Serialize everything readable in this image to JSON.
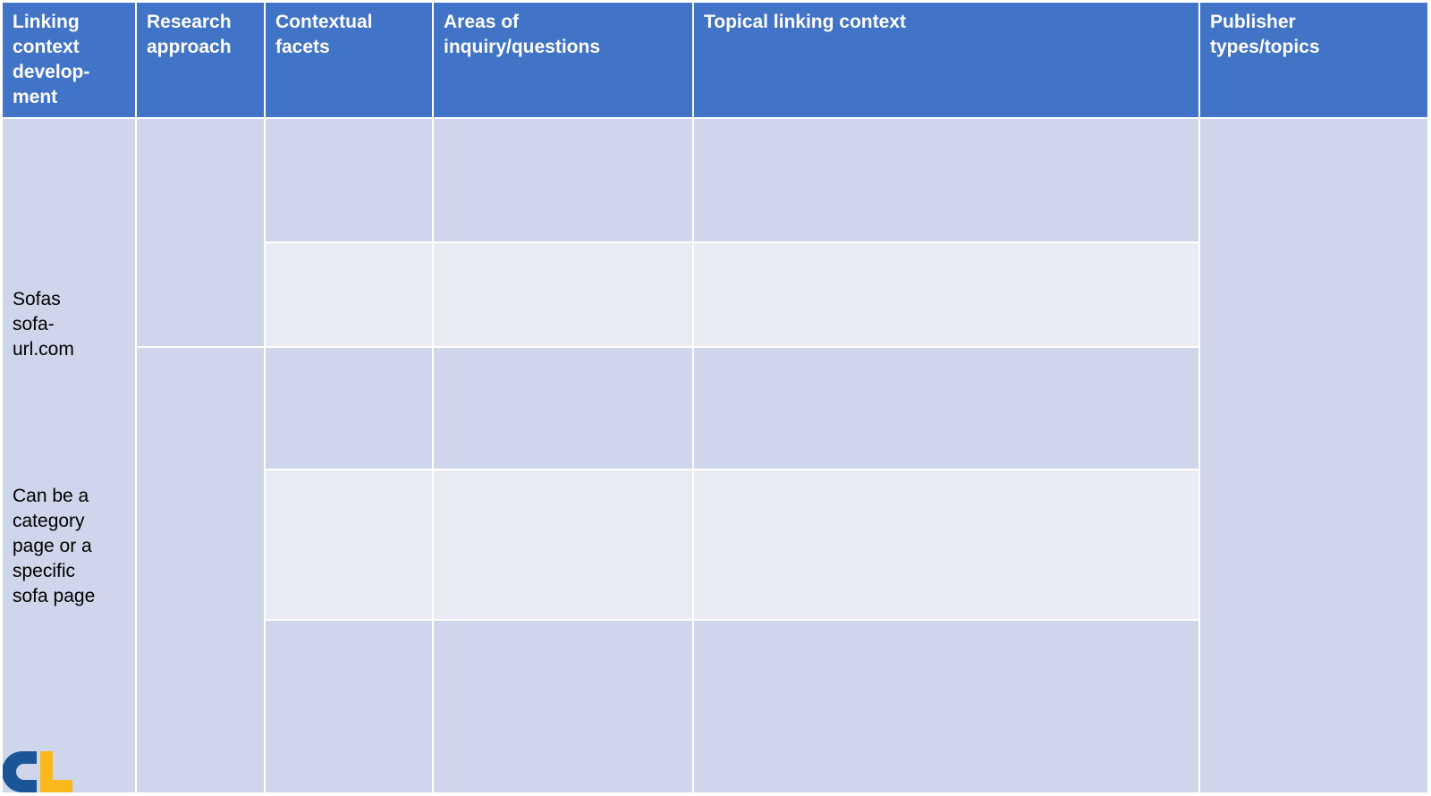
{
  "table": {
    "headers": [
      "Linking\ncontext\ndevelop-\nment",
      "Research\napproach",
      "Contextual\nfacets",
      "Areas of\ninquiry/questions",
      "Topical linking context",
      "Publisher\ntypes/topics"
    ],
    "first_column": {
      "site": "Sofas\nsofa-\nurl.com",
      "note": "Can be a\ncategory\npage or a\nspecific\nsofa page"
    }
  },
  "colors": {
    "header": "#4173c6",
    "row_dark": "#cfd5ea",
    "row_light": "#e9ebf5",
    "logo_blue": "#1a5596",
    "logo_yellow": "#f9b81b"
  },
  "logo": {
    "text": "CL"
  }
}
